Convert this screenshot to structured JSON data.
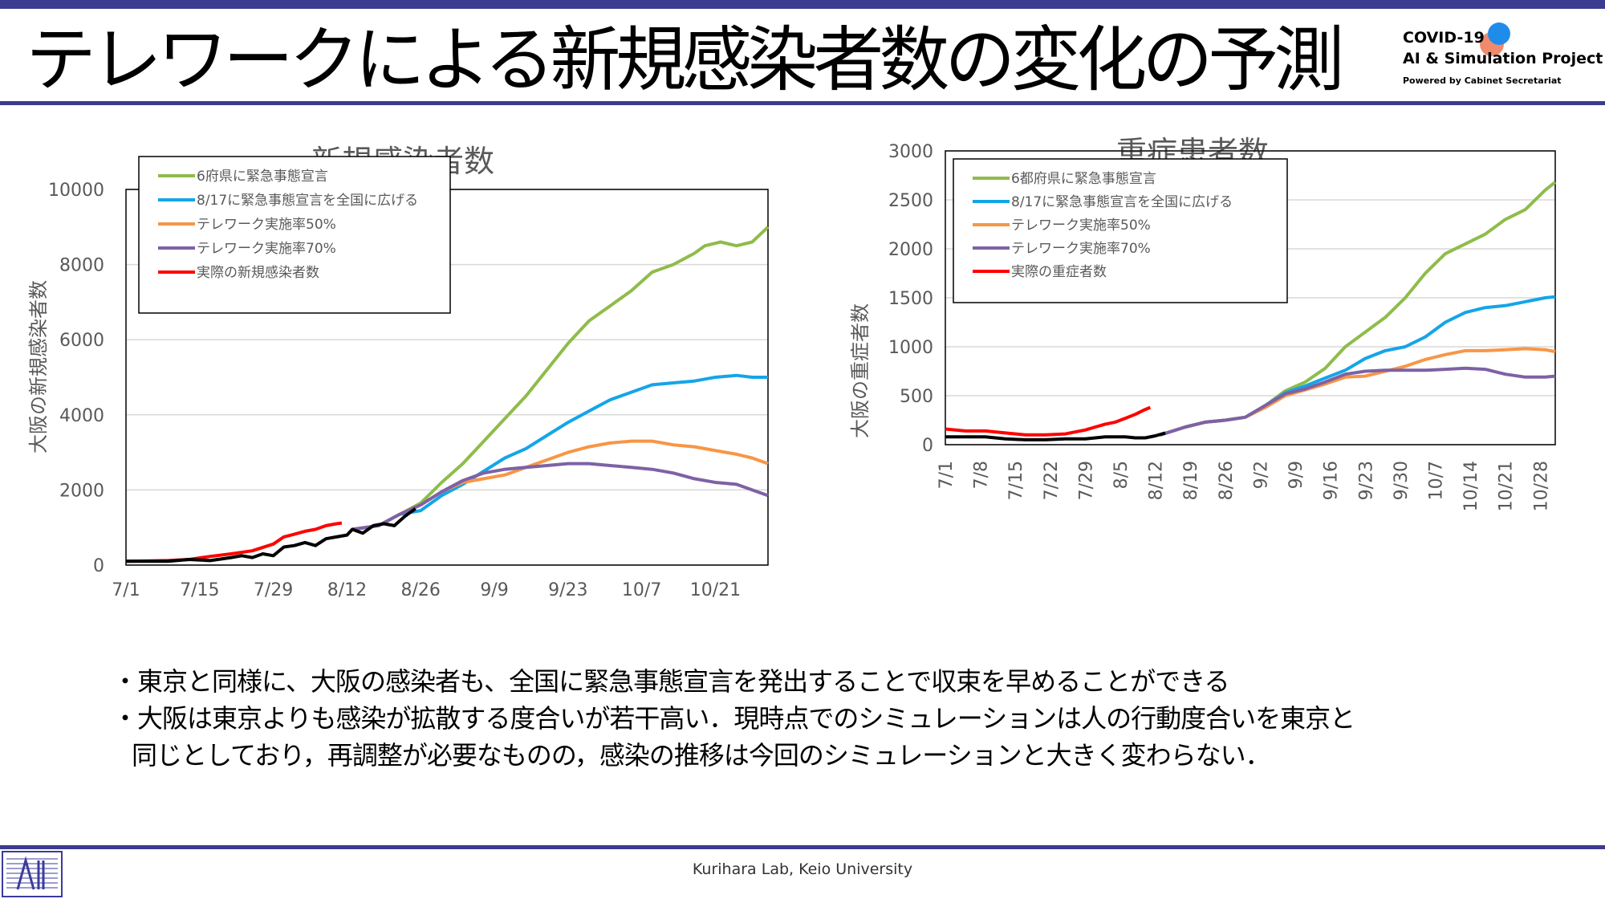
{
  "colors": {
    "accent": "#3b3b8f",
    "green": "#8fbc4a",
    "blue": "#14a5e8",
    "orange": "#f79646",
    "purple": "#7e61a5",
    "red": "#ff0000",
    "black": "#000000"
  },
  "slide": {
    "title": "テレワークによる新規感染者数の変化の予測",
    "logo": {
      "line1": "COVID-19",
      "line2": "AI & Simulation Project",
      "line3": "Powered by Cabinet Secretariat"
    },
    "bullets": [
      "・東京と同様に、大阪の感染者も、全国に緊急事態宣言を発出することで収束を早めることができる",
      "・大阪は東京よりも感染が拡散する度合いが若干高い．現時点でのシミュレーションは人の行動度合いを東京と",
      "同じとしており，再調整が必要なものの，感染の推移は今回のシミュレーションと大きく変わらない．"
    ],
    "footer": "Kurihara Lab, Keio University",
    "footer_logo_icon": "lab-logo-icon"
  },
  "chart_data": [
    {
      "type": "line",
      "title": "新規感染者数",
      "xlabel": "",
      "ylabel": "大阪の新規感染者数",
      "ylim": [
        0,
        10000
      ],
      "yticks": [
        0,
        2000,
        4000,
        6000,
        8000,
        10000
      ],
      "x_unit": "day index (0 = 7/1)",
      "xlim": [
        0,
        122
      ],
      "xticks": [
        {
          "day": 0,
          "label": "7/1"
        },
        {
          "day": 14,
          "label": "7/15"
        },
        {
          "day": 28,
          "label": "7/29"
        },
        {
          "day": 42,
          "label": "8/12"
        },
        {
          "day": 56,
          "label": "8/26"
        },
        {
          "day": 70,
          "label": "9/9"
        },
        {
          "day": 84,
          "label": "9/23"
        },
        {
          "day": 98,
          "label": "10/7"
        },
        {
          "day": 112,
          "label": "10/21"
        }
      ],
      "tick_rotation": 0,
      "legend_position": "top-left",
      "series": [
        {
          "name": "6府県に緊急事態宣言",
          "color": "green",
          "x": [
            43,
            48,
            52,
            56,
            60,
            64,
            68,
            72,
            76,
            80,
            84,
            88,
            92,
            96,
            100,
            104,
            108,
            110,
            113,
            116,
            119,
            122
          ],
          "y": [
            950,
            1050,
            1350,
            1650,
            2200,
            2700,
            3300,
            3900,
            4500,
            5200,
            5900,
            6500,
            6900,
            7300,
            7800,
            8000,
            8300,
            8500,
            8600,
            8500,
            8600,
            9000
          ]
        },
        {
          "name": "8/17に緊急事態宣言を全国に広げる",
          "color": "blue",
          "x": [
            43,
            48,
            52,
            56,
            60,
            64,
            68,
            72,
            76,
            80,
            84,
            88,
            92,
            96,
            100,
            104,
            108,
            112,
            116,
            119,
            122
          ],
          "y": [
            950,
            1050,
            1350,
            1450,
            1850,
            2150,
            2500,
            2850,
            3100,
            3450,
            3800,
            4100,
            4400,
            4600,
            4800,
            4850,
            4900,
            5000,
            5050,
            5000,
            5000
          ]
        },
        {
          "name": "テレワーク実施率50%",
          "color": "orange",
          "x": [
            43,
            48,
            52,
            56,
            60,
            64,
            68,
            72,
            76,
            80,
            84,
            88,
            92,
            96,
            100,
            104,
            108,
            112,
            116,
            119,
            122
          ],
          "y": [
            950,
            1050,
            1350,
            1600,
            1950,
            2200,
            2300,
            2400,
            2600,
            2800,
            3000,
            3150,
            3250,
            3300,
            3300,
            3200,
            3150,
            3050,
            2950,
            2850,
            2700
          ]
        },
        {
          "name": "テレワーク実施率70%",
          "color": "purple",
          "x": [
            43,
            48,
            52,
            56,
            60,
            64,
            68,
            72,
            76,
            80,
            84,
            88,
            92,
            96,
            100,
            104,
            108,
            112,
            116,
            119,
            122
          ],
          "y": [
            950,
            1050,
            1350,
            1600,
            1950,
            2250,
            2450,
            2550,
            2600,
            2650,
            2700,
            2700,
            2650,
            2600,
            2550,
            2450,
            2300,
            2200,
            2150,
            2000,
            1850
          ]
        },
        {
          "name": "実際の新規感染者数",
          "color": "red",
          "x": [
            0,
            4,
            8,
            12,
            16,
            20,
            24,
            28,
            30,
            32,
            34,
            36,
            38,
            40,
            41
          ],
          "y": [
            100,
            110,
            120,
            150,
            230,
            300,
            380,
            560,
            750,
            820,
            900,
            950,
            1050,
            1100,
            1120
          ]
        },
        {
          "name": "",
          "color": "black",
          "x": [
            0,
            4,
            8,
            12,
            16,
            20,
            22,
            24,
            26,
            28,
            30,
            32,
            34,
            36,
            38,
            40,
            42,
            43,
            45,
            47,
            49,
            51,
            53,
            55
          ],
          "y": [
            100,
            100,
            100,
            150,
            120,
            200,
            250,
            200,
            300,
            250,
            480,
            520,
            600,
            520,
            700,
            750,
            800,
            950,
            850,
            1050,
            1100,
            1050,
            1300,
            1500
          ]
        }
      ]
    },
    {
      "type": "line",
      "title": "重症患者数",
      "xlabel": "",
      "ylabel": "大阪の重症者数",
      "ylim": [
        0,
        3000
      ],
      "yticks": [
        0,
        500,
        1000,
        1500,
        2000,
        2500,
        3000
      ],
      "x_unit": "day index (0 = 7/1)",
      "xlim": [
        0,
        122
      ],
      "xticks": [
        {
          "day": 0,
          "label": "7/1"
        },
        {
          "day": 7,
          "label": "7/8"
        },
        {
          "day": 14,
          "label": "7/15"
        },
        {
          "day": 21,
          "label": "7/22"
        },
        {
          "day": 28,
          "label": "7/29"
        },
        {
          "day": 35,
          "label": "8/5"
        },
        {
          "day": 42,
          "label": "8/12"
        },
        {
          "day": 49,
          "label": "8/19"
        },
        {
          "day": 56,
          "label": "8/26"
        },
        {
          "day": 63,
          "label": "9/2"
        },
        {
          "day": 70,
          "label": "9/9"
        },
        {
          "day": 77,
          "label": "9/16"
        },
        {
          "day": 84,
          "label": "9/23"
        },
        {
          "day": 91,
          "label": "9/30"
        },
        {
          "day": 98,
          "label": "10/7"
        },
        {
          "day": 105,
          "label": "10/14"
        },
        {
          "day": 112,
          "label": "10/21"
        },
        {
          "day": 119,
          "label": "10/28"
        }
      ],
      "tick_rotation": -90,
      "legend_position": "top-left",
      "series": [
        {
          "name": "6都府県に緊急事態宣言",
          "color": "green",
          "x": [
            43,
            48,
            52,
            56,
            60,
            64,
            68,
            72,
            76,
            80,
            84,
            88,
            92,
            96,
            100,
            104,
            108,
            112,
            116,
            120,
            122
          ],
          "y": [
            100,
            180,
            230,
            250,
            280,
            400,
            550,
            640,
            780,
            1000,
            1150,
            1300,
            1500,
            1750,
            1950,
            2050,
            2150,
            2300,
            2400,
            2600,
            2680
          ]
        },
        {
          "name": "8/17に緊急事態宣言を全国に広げる",
          "color": "blue",
          "x": [
            43,
            48,
            52,
            56,
            60,
            64,
            68,
            72,
            76,
            80,
            84,
            88,
            92,
            96,
            100,
            104,
            108,
            112,
            116,
            120,
            122
          ],
          "y": [
            100,
            180,
            230,
            250,
            280,
            400,
            530,
            600,
            680,
            760,
            880,
            960,
            1000,
            1100,
            1250,
            1350,
            1400,
            1420,
            1460,
            1500,
            1510
          ]
        },
        {
          "name": "テレワーク実施率50%",
          "color": "orange",
          "x": [
            43,
            48,
            52,
            56,
            60,
            64,
            68,
            72,
            76,
            80,
            84,
            88,
            92,
            96,
            100,
            104,
            108,
            112,
            116,
            120,
            122
          ],
          "y": [
            100,
            180,
            230,
            250,
            280,
            380,
            500,
            560,
            620,
            690,
            700,
            750,
            800,
            870,
            920,
            960,
            960,
            970,
            980,
            970,
            950
          ]
        },
        {
          "name": "テレワーク実施率70%",
          "color": "purple",
          "x": [
            43,
            48,
            52,
            56,
            60,
            64,
            68,
            72,
            76,
            80,
            84,
            88,
            92,
            96,
            100,
            104,
            108,
            112,
            116,
            120,
            122
          ],
          "y": [
            100,
            180,
            230,
            250,
            280,
            400,
            520,
            570,
            640,
            720,
            750,
            760,
            760,
            760,
            770,
            780,
            770,
            720,
            690,
            690,
            700
          ]
        },
        {
          "name": "実際の重症者数",
          "color": "red",
          "x": [
            0,
            4,
            8,
            12,
            16,
            20,
            24,
            28,
            30,
            32,
            34,
            36,
            38,
            40,
            41
          ],
          "y": [
            160,
            140,
            140,
            120,
            100,
            100,
            110,
            150,
            180,
            210,
            230,
            270,
            310,
            360,
            380
          ]
        },
        {
          "name": "",
          "color": "black",
          "x": [
            0,
            4,
            8,
            12,
            16,
            20,
            24,
            28,
            30,
            32,
            34,
            36,
            38,
            40,
            42,
            44
          ],
          "y": [
            80,
            80,
            80,
            60,
            50,
            50,
            60,
            60,
            70,
            80,
            80,
            80,
            70,
            70,
            90,
            120
          ]
        }
      ]
    }
  ]
}
